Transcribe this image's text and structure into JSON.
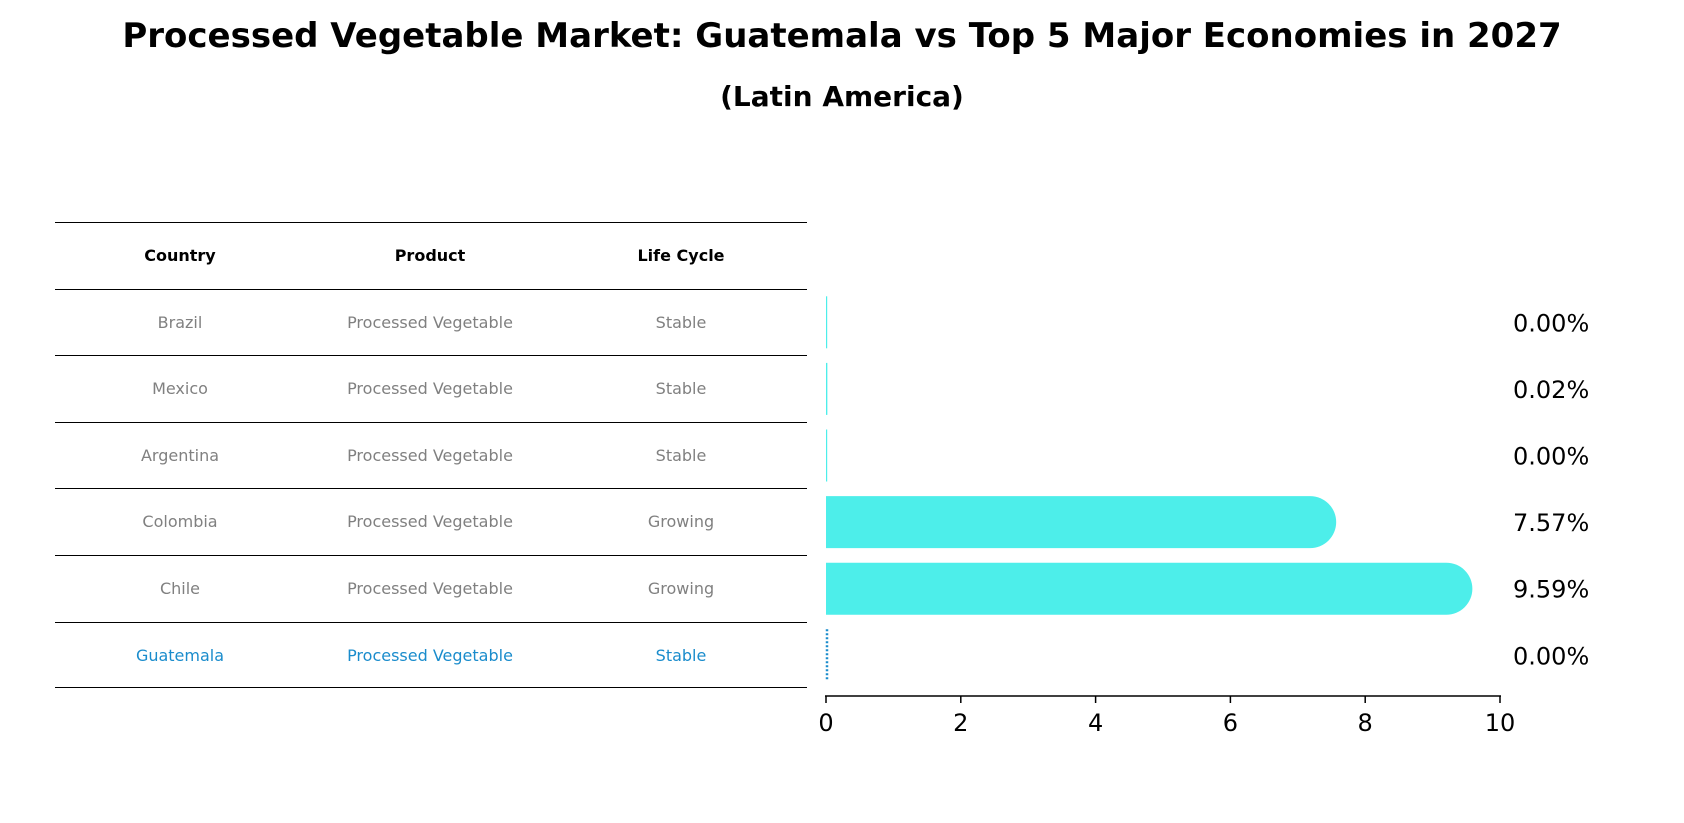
{
  "chart_data": {
    "type": "bar",
    "orientation": "horizontal",
    "title": "Processed Vegetable Market: Guatemala vs Top 5 Major Economies in 2027",
    "subtitle": "(Latin America)",
    "table": {
      "headers": [
        "Country",
        "Product",
        "Life Cycle"
      ],
      "rows": [
        {
          "country": "Brazil",
          "product": "Processed Vegetable",
          "life_cycle": "Stable"
        },
        {
          "country": "Mexico",
          "product": "Processed Vegetable",
          "life_cycle": "Stable"
        },
        {
          "country": "Argentina",
          "product": "Processed Vegetable",
          "life_cycle": "Stable"
        },
        {
          "country": "Colombia",
          "product": "Processed Vegetable",
          "life_cycle": "Growing"
        },
        {
          "country": "Chile",
          "product": "Processed Vegetable",
          "life_cycle": "Growing"
        },
        {
          "country": "Guatemala",
          "product": "Processed Vegetable",
          "life_cycle": "Stable"
        }
      ]
    },
    "categories": [
      "Brazil",
      "Mexico",
      "Argentina",
      "Colombia",
      "Chile",
      "Guatemala"
    ],
    "values": [
      0.0,
      0.02,
      0.0,
      7.57,
      9.59,
      0.0
    ],
    "value_labels": [
      "0.00%",
      "0.02%",
      "0.00%",
      "7.57%",
      "9.59%",
      "0.00%"
    ],
    "highlight": "Guatemala",
    "xlim": [
      0,
      10
    ],
    "xticks": [
      0,
      2,
      4,
      6,
      8,
      10
    ],
    "colors": {
      "bar": "#4deeea",
      "highlight": "#1a8ccc",
      "muted_text": "#808080"
    }
  }
}
